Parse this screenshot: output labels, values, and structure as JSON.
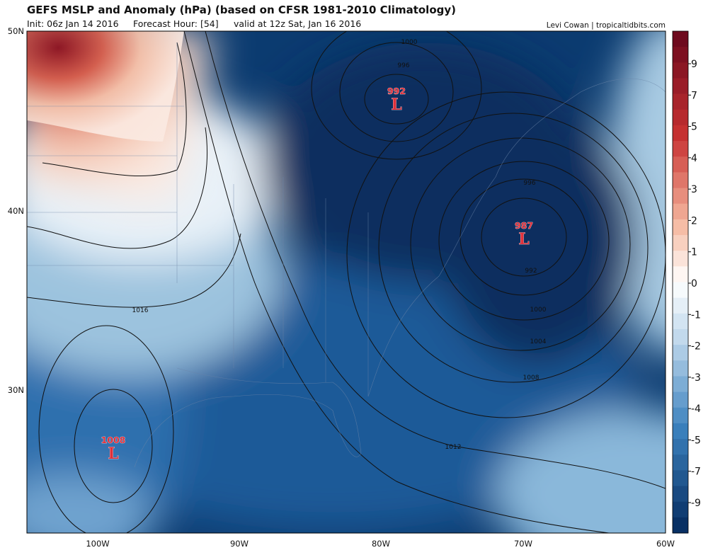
{
  "header": {
    "title": "GEFS MSLP and Anomaly (hPa) (based on CFSR 1981-2010 Climatology)",
    "init": "Init: 06z Jan 14 2016",
    "forecast_hour": "Forecast Hour: [54]",
    "valid": "valid at 12z Sat, Jan 16 2016",
    "credit": "Levi Cowan | tropicaltidbits.com"
  },
  "map": {
    "lat_labels": [
      "50N",
      "40N",
      "30N"
    ],
    "lon_labels": [
      "100W",
      "90W",
      "80W",
      "70W",
      "60W"
    ],
    "isobar_labels": [
      "1000",
      "996",
      "996",
      "992",
      "1000",
      "1004",
      "1008",
      "1012",
      "1016"
    ],
    "lows": [
      {
        "value": "992",
        "symbol": "L"
      },
      {
        "value": "987",
        "symbol": "L"
      },
      {
        "value": "1008",
        "symbol": "L"
      }
    ]
  },
  "colorbar": {
    "labels": [
      "9",
      "7",
      "5",
      "4",
      "3",
      "2",
      "1",
      "0",
      "-1",
      "-2",
      "-3",
      "-4",
      "-5",
      "-7",
      "-9"
    ]
  }
}
